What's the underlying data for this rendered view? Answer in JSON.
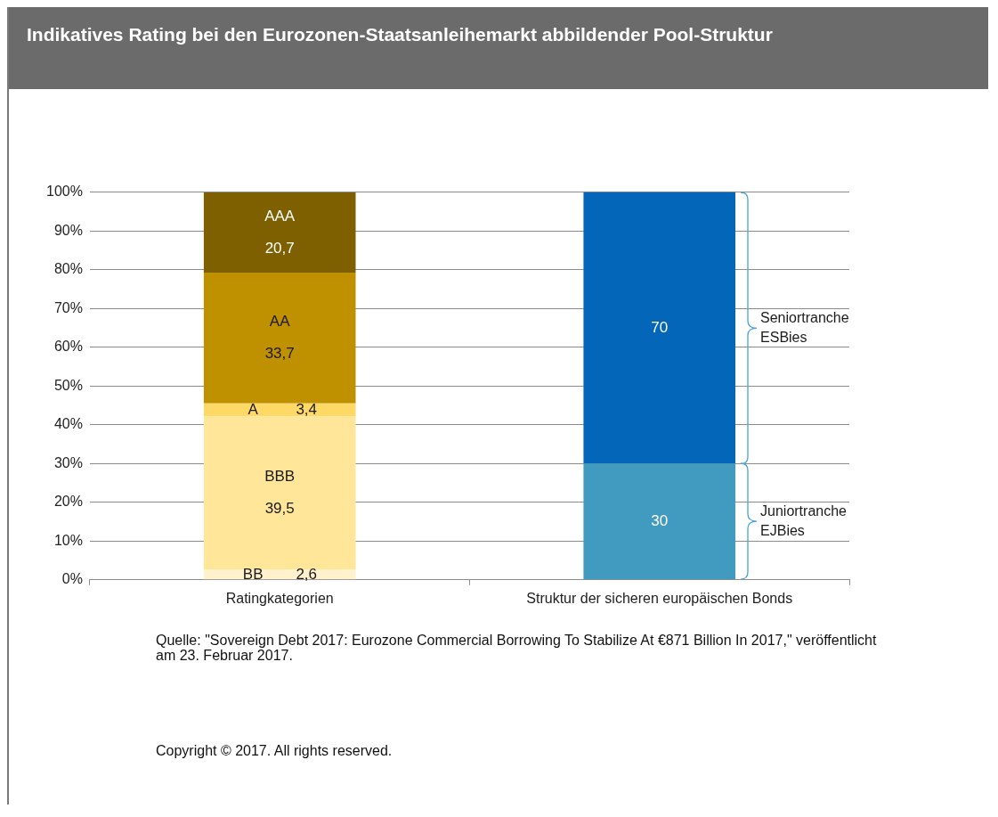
{
  "chart_data": {
    "type": "bar",
    "stacked": true,
    "title": "Indikatives Rating bei den Eurozonen-Staatsanleihemarkt abbildender Pool-Struktur",
    "categories": [
      "Ratingkategorien",
      "Struktur der sicheren europäischen Bonds"
    ],
    "series": [
      {
        "name": "BB",
        "color": "#fff2cc",
        "values": [
          2.6,
          null
        ],
        "value_labels": [
          "2,6",
          null
        ]
      },
      {
        "name": "BBB",
        "color": "#ffe699",
        "values": [
          39.5,
          null
        ],
        "value_labels": [
          "39,5",
          null
        ]
      },
      {
        "name": "A",
        "color": "#ffd966",
        "values": [
          3.4,
          null
        ],
        "value_labels": [
          "3,4",
          null
        ]
      },
      {
        "name": "AA",
        "color": "#bf9000",
        "values": [
          33.7,
          null
        ],
        "value_labels": [
          "33,7",
          null
        ]
      },
      {
        "name": "AAA",
        "color": "#7f6000",
        "values": [
          20.7,
          null
        ],
        "value_labels": [
          "20,7",
          null
        ]
      },
      {
        "name": "Juniortranche EJBies",
        "color": "#419abf",
        "values": [
          null,
          30
        ],
        "value_labels": [
          null,
          "30"
        ]
      },
      {
        "name": "Seniortranche ESBies",
        "color": "#0466b9",
        "values": [
          null,
          70
        ],
        "value_labels": [
          null,
          "70"
        ]
      }
    ],
    "ylim": [
      0,
      100
    ],
    "yticks": [
      {
        "value": 0,
        "label": "0%"
      },
      {
        "value": 10,
        "label": "10%"
      },
      {
        "value": 20,
        "label": "20%"
      },
      {
        "value": 30,
        "label": "30%"
      },
      {
        "value": 40,
        "label": "40%"
      },
      {
        "value": 50,
        "label": "50%"
      },
      {
        "value": 60,
        "label": "60%"
      },
      {
        "value": 70,
        "label": "70%"
      },
      {
        "value": 80,
        "label": "80%"
      },
      {
        "value": 90,
        "label": "90%"
      },
      {
        "value": 100,
        "label": "100%"
      }
    ],
    "grid": "y",
    "legend": false,
    "annotations": [
      "Quelle: \"Sovereign Debt 2017: Eurozone Commercial Borrowing To Stabilize At €871 Billion In 2017,\" veröffentlicht am 23. Februar 2017.",
      "Copyright © 2017. All rights reserved."
    ]
  }
}
